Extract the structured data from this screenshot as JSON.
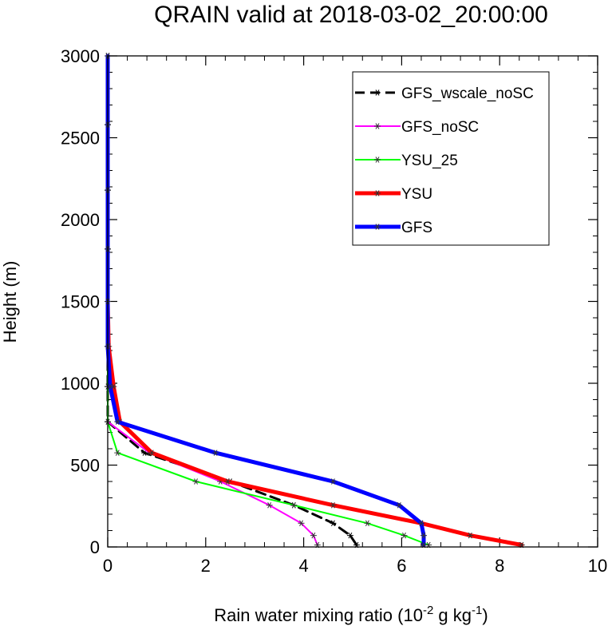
{
  "chart_data": {
    "type": "line",
    "title": "QRAIN valid at 2018-03-02_20:00:00",
    "xlabel": {
      "main": "Rain water mixing ratio (10",
      "exp1": "-2",
      "mid": " g kg",
      "exp2": "-1",
      "end": ")"
    },
    "ylabel": "Height (m)",
    "xlim": [
      0,
      10
    ],
    "ylim": [
      0,
      3000
    ],
    "xticks": [
      0,
      2,
      4,
      6,
      8,
      10
    ],
    "xtick_labels": [
      "0",
      "2",
      "4",
      "6",
      "8",
      "10"
    ],
    "yticks": [
      0,
      500,
      1000,
      1500,
      2000,
      2500,
      3000
    ],
    "ytick_labels": [
      "0",
      "500",
      "1000",
      "1500",
      "2000",
      "2500",
      "3000"
    ],
    "grid": false,
    "legend_position": "top-right",
    "y_levels": [
      12,
      70,
      145,
      255,
      400,
      575,
      765,
      980,
      1225,
      1500,
      1820,
      2180,
      2580,
      3000
    ],
    "series": [
      {
        "name": "GFS_wscale_noSC",
        "color": "#000000",
        "dash": true,
        "width": 3,
        "values": [
          5.08,
          4.95,
          4.6,
          3.8,
          2.5,
          0.75,
          0.0,
          0.0,
          0.0,
          0.0,
          0.0,
          0.0,
          0.0,
          0.0
        ]
      },
      {
        "name": "GFS_noSC",
        "color": "#ff00ff",
        "dash": false,
        "width": 2,
        "values": [
          4.28,
          4.2,
          3.95,
          3.3,
          2.3,
          0.85,
          0.0,
          0.0,
          0.0,
          0.0,
          0.0,
          0.0,
          0.0,
          0.0
        ]
      },
      {
        "name": "YSU_25",
        "color": "#00ff00",
        "dash": false,
        "width": 2,
        "values": [
          6.55,
          6.05,
          5.3,
          3.8,
          1.8,
          0.2,
          0.0,
          0.0,
          0.0,
          0.0,
          0.0,
          0.0,
          0.0,
          0.0
        ]
      },
      {
        "name": "YSU",
        "color": "#ff0000",
        "dash": false,
        "width": 5,
        "values": [
          8.45,
          7.4,
          6.4,
          4.6,
          2.45,
          0.9,
          0.25,
          0.12,
          0.02,
          0.0,
          0.0,
          0.0,
          0.0,
          0.0
        ]
      },
      {
        "name": "GFS",
        "color": "#0000ff",
        "dash": false,
        "width": 5,
        "values": [
          6.45,
          6.45,
          6.4,
          5.95,
          4.6,
          2.2,
          0.2,
          0.05,
          0.0,
          0.0,
          0.0,
          0.0,
          0.0,
          0.0
        ]
      }
    ]
  }
}
